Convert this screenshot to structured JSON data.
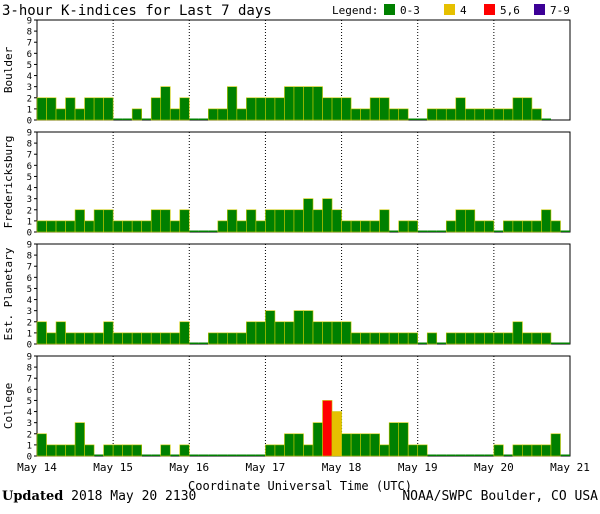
{
  "title": "3-hour K-indices for Last 7 days",
  "legend": {
    "label": "Legend:",
    "items": [
      {
        "label": "0-3",
        "color": "#008000"
      },
      {
        "label": "4",
        "color": "#e6c000"
      },
      {
        "label": "5,6",
        "color": "#ff0000"
      },
      {
        "label": "7-9",
        "color": "#3c0096"
      }
    ]
  },
  "footer": {
    "updated_label": "Updated",
    "updated_value": "2018 May 20 2130",
    "source": "NOAA/SWPC Boulder, CO USA"
  },
  "chart_data": {
    "type": "bar",
    "xlabel": "Coordinate Universal Time (UTC)",
    "x_ticks": [
      "May 14",
      "May 15",
      "May 16",
      "May 17",
      "May 18",
      "May 19",
      "May 20",
      "May 21"
    ],
    "ylim": [
      0,
      9
    ],
    "y_ticks": [
      0,
      1,
      2,
      3,
      4,
      5,
      6,
      7,
      8,
      9
    ],
    "bar_interval_hours": 3,
    "color_scale": [
      {
        "range": "0-3",
        "color": "#008000"
      },
      {
        "range": "4",
        "color": "#e6c000"
      },
      {
        "range": "5,6",
        "color": "#ff0000"
      },
      {
        "range": "7-9",
        "color": "#3c0096"
      }
    ],
    "panels": [
      {
        "name": "Boulder",
        "values": [
          2,
          2,
          1,
          2,
          1,
          2,
          2,
          2,
          0,
          0,
          1,
          0,
          2,
          3,
          1,
          2,
          0,
          0,
          1,
          1,
          3,
          1,
          2,
          2,
          2,
          2,
          3,
          3,
          3,
          3,
          2,
          2,
          2,
          1,
          1,
          2,
          2,
          1,
          1,
          0,
          0,
          1,
          1,
          1,
          2,
          1,
          1,
          1,
          1,
          1,
          2,
          2,
          1,
          0
        ]
      },
      {
        "name": "Fredericksburg",
        "values": [
          1,
          1,
          1,
          1,
          2,
          1,
          2,
          2,
          1,
          1,
          1,
          1,
          2,
          2,
          1,
          2,
          0,
          0,
          0,
          1,
          2,
          1,
          2,
          1,
          2,
          2,
          2,
          2,
          3,
          2,
          3,
          2,
          1,
          1,
          1,
          1,
          2,
          0,
          1,
          1,
          0,
          0,
          0,
          1,
          2,
          2,
          1,
          1,
          0,
          1,
          1,
          1,
          1,
          2,
          1,
          0
        ]
      },
      {
        "name": "Est. Planetary",
        "values": [
          2,
          1,
          2,
          1,
          1,
          1,
          1,
          2,
          1,
          1,
          1,
          1,
          1,
          1,
          1,
          2,
          0,
          0,
          1,
          1,
          1,
          1,
          2,
          2,
          3,
          2,
          2,
          3,
          3,
          2,
          2,
          2,
          2,
          1,
          1,
          1,
          1,
          1,
          1,
          1,
          0,
          1,
          0,
          1,
          1,
          1,
          1,
          1,
          1,
          1,
          2,
          1,
          1,
          1,
          0,
          0
        ]
      },
      {
        "name": "College",
        "values": [
          2,
          1,
          1,
          1,
          3,
          1,
          0,
          1,
          1,
          1,
          1,
          0,
          0,
          1,
          0,
          1,
          0,
          0,
          0,
          0,
          0,
          0,
          0,
          0,
          1,
          1,
          2,
          2,
          1,
          3,
          5,
          4,
          2,
          2,
          2,
          2,
          1,
          3,
          3,
          1,
          1,
          0,
          0,
          0,
          0,
          0,
          0,
          0,
          1,
          0,
          1,
          1,
          1,
          1,
          2,
          0,
          0,
          0
        ]
      }
    ]
  }
}
